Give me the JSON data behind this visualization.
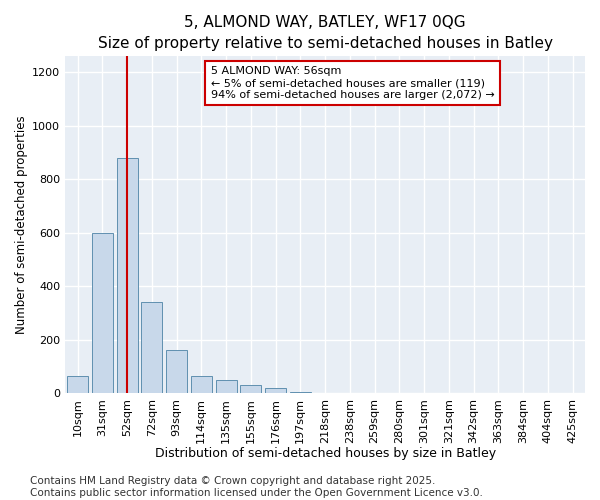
{
  "title": "5, ALMOND WAY, BATLEY, WF17 0QG",
  "subtitle": "Size of property relative to semi-detached houses in Batley",
  "xlabel": "Distribution of semi-detached houses by size in Batley",
  "ylabel": "Number of semi-detached properties",
  "categories": [
    "10sqm",
    "31sqm",
    "52sqm",
    "72sqm",
    "93sqm",
    "114sqm",
    "135sqm",
    "155sqm",
    "176sqm",
    "197sqm",
    "218sqm",
    "238sqm",
    "259sqm",
    "280sqm",
    "301sqm",
    "321sqm",
    "342sqm",
    "363sqm",
    "384sqm",
    "404sqm",
    "425sqm"
  ],
  "values": [
    65,
    600,
    880,
    340,
    160,
    65,
    50,
    30,
    20,
    5,
    0,
    0,
    0,
    0,
    0,
    0,
    0,
    0,
    0,
    0,
    0
  ],
  "bar_color": "#c8d8ea",
  "bar_edge_color": "#6090b0",
  "vline_index": 2,
  "vline_color": "#cc0000",
  "annotation_text": "5 ALMOND WAY: 56sqm\n← 5% of semi-detached houses are smaller (119)\n94% of semi-detached houses are larger (2,072) →",
  "annotation_box_color": "#ffffff",
  "annotation_box_edge": "#cc0000",
  "footer": "Contains HM Land Registry data © Crown copyright and database right 2025.\nContains public sector information licensed under the Open Government Licence v3.0.",
  "ylim": [
    0,
    1260
  ],
  "yticks": [
    0,
    200,
    400,
    600,
    800,
    1000,
    1200
  ],
  "fig_background_color": "#ffffff",
  "plot_background_color": "#e8eef5",
  "grid_color": "#ffffff",
  "title_fontsize": 11,
  "xlabel_fontsize": 9,
  "ylabel_fontsize": 8.5,
  "tick_fontsize": 8,
  "footer_fontsize": 7.5
}
